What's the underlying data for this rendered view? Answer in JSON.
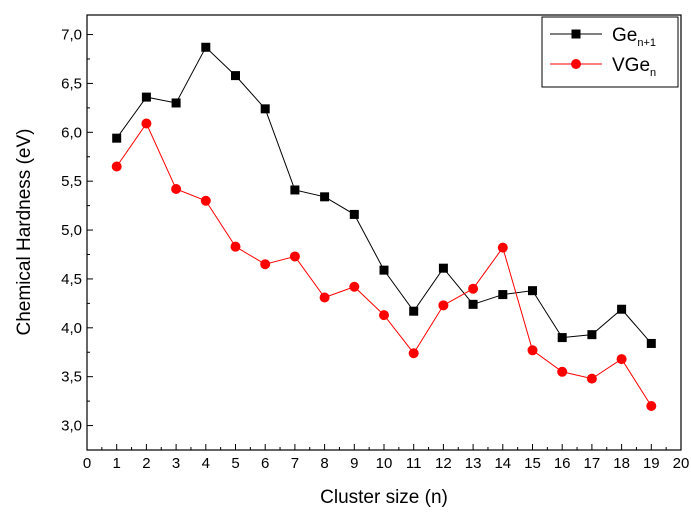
{
  "chart_data": {
    "type": "line",
    "xlabel": "Cluster size (n)",
    "ylabel": "Chemical Hardness (eV)",
    "xlim": [
      0,
      20
    ],
    "ylim": [
      2.75,
      7.2
    ],
    "x_ticks": [
      0,
      1,
      2,
      3,
      4,
      5,
      6,
      7,
      8,
      9,
      10,
      11,
      12,
      13,
      14,
      15,
      16,
      17,
      18,
      19,
      20
    ],
    "y_ticks": [
      3.0,
      3.5,
      4.0,
      4.5,
      5.0,
      5.5,
      6.0,
      6.5,
      7.0
    ],
    "y_tick_labels": [
      "3,0",
      "3,5",
      "4,0",
      "4,5",
      "5,0",
      "5,5",
      "6,0",
      "6,5",
      "7,0"
    ],
    "grid": false,
    "legend_position": "top-right",
    "x": [
      1,
      2,
      3,
      4,
      5,
      6,
      7,
      8,
      9,
      10,
      11,
      12,
      13,
      14,
      15,
      16,
      17,
      18,
      19
    ],
    "series": [
      {
        "name": "Ge",
        "name_sub": "n+1",
        "color": "#000000",
        "marker": "square",
        "values": [
          5.94,
          6.36,
          6.3,
          6.87,
          6.58,
          6.24,
          5.41,
          5.34,
          5.16,
          4.59,
          4.17,
          4.61,
          4.24,
          4.34,
          4.38,
          3.9,
          3.93,
          4.19,
          3.84
        ]
      },
      {
        "name": "VGe",
        "name_sub": "n",
        "color": "#ff0000",
        "marker": "circle",
        "values": [
          5.65,
          6.09,
          5.42,
          5.3,
          4.83,
          4.65,
          4.73,
          4.31,
          4.42,
          4.13,
          3.74,
          4.23,
          4.4,
          4.82,
          3.77,
          3.55,
          3.48,
          3.68,
          3.2
        ]
      }
    ]
  }
}
